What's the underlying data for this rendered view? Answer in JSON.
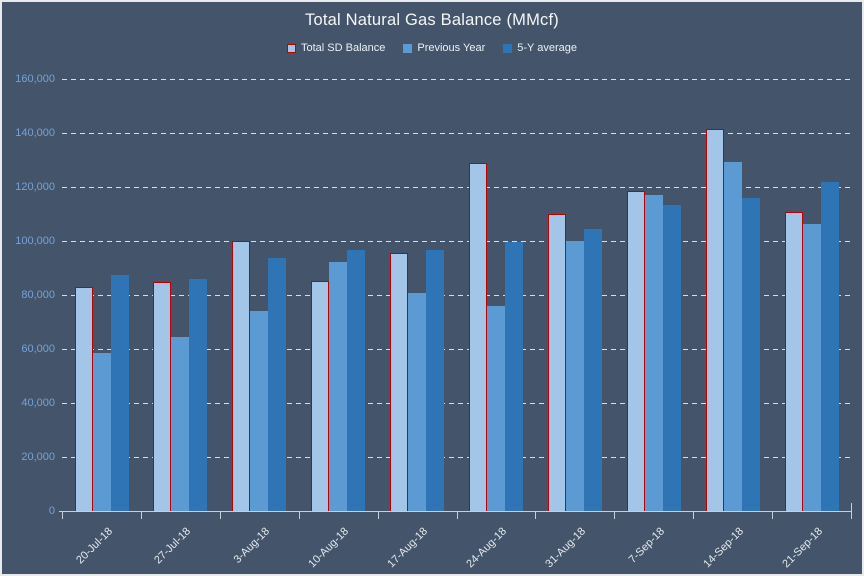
{
  "chart_data": {
    "type": "bar",
    "title": "Total Natural Gas Balance (MMcf)",
    "categories": [
      "20-Jul-18",
      "27-Jul-18",
      "3-Aug-18",
      "10-Aug-18",
      "17-Aug-18",
      "24-Aug-18",
      "31-Aug-18",
      "7-Sep-18",
      "14-Sep-18",
      "21-Sep-18"
    ],
    "series": [
      {
        "name": "Total SD Balance",
        "fill": "#A3C6E8",
        "border": "#C00000",
        "values": [
          83000,
          85000,
          100000,
          85300,
          95600,
          129000,
          110000,
          118400,
          141400,
          110900
        ]
      },
      {
        "name": "Previous Year",
        "fill": "#5B9AD3",
        "values": [
          58400,
          64400,
          74100,
          92400,
          80600,
          76000,
          100000,
          117200,
          129400,
          106300
        ]
      },
      {
        "name": "5-Y average",
        "fill": "#2F74B5",
        "values": [
          87300,
          86000,
          93600,
          96600,
          96500,
          99800,
          104500,
          113500,
          115900,
          121800
        ]
      }
    ],
    "xlabel": "",
    "ylabel": "",
    "ylim": [
      0,
      160000
    ],
    "ytick_interval": 20000,
    "ytick_labels": [
      "0",
      "20,000",
      "40,000",
      "60,000",
      "80,000",
      "100,000",
      "120,000",
      "140,000",
      "160,000"
    ],
    "grid": "horizontal-dashed",
    "legend_position": "top-center"
  },
  "colors": {
    "background": "#44546A",
    "outer_border": "#E8EAED",
    "title_text": "#F4F6F8",
    "legend_text": "#EAF0F6",
    "y_axis_label": "#74A2D8",
    "x_axis_label": "#E4E8EE",
    "gridline": "#E4E9F0",
    "axis_line": "#C9CFD8",
    "series1_fill": "#A3C6E8",
    "series1_border": "#C00000",
    "series2_fill": "#5B9AD3",
    "series3_fill": "#2F74B5"
  }
}
